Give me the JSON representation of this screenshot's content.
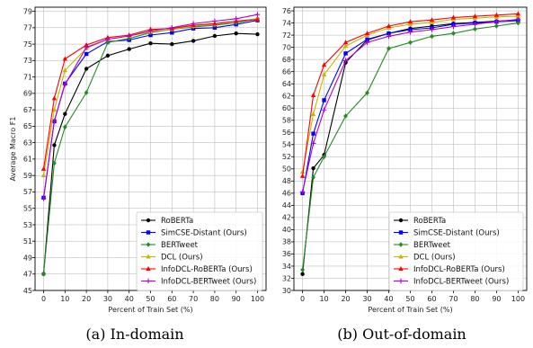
{
  "chart_data": [
    {
      "type": "line",
      "caption": "(a) In-domain",
      "xlabel": "Percent of Train Set (%)",
      "ylabel": "Average Macro F1",
      "x": [
        0,
        5,
        10,
        20,
        30,
        40,
        50,
        60,
        70,
        80,
        90,
        100
      ],
      "xticks": [
        0,
        10,
        20,
        30,
        40,
        50,
        60,
        70,
        80,
        90,
        100
      ],
      "xlim": [
        -4,
        104
      ],
      "ylim": [
        45,
        79.5
      ],
      "yticks": [
        45,
        47,
        49,
        51,
        53,
        55,
        57,
        59,
        61,
        63,
        65,
        67,
        69,
        71,
        73,
        75,
        77,
        79
      ],
      "grid": true,
      "legend_position": "bottom-right",
      "series": [
        {
          "name": "RoBERTa",
          "color": "#000000",
          "marker": "circle",
          "values": [
            47.0,
            62.7,
            66.5,
            72.0,
            73.6,
            74.4,
            75.1,
            75.0,
            75.4,
            76.0,
            76.3,
            76.2
          ]
        },
        {
          "name": "SimCSE-Distant (Ours)",
          "color": "#0000ff",
          "marker": "square",
          "values": [
            56.3,
            65.6,
            70.2,
            73.8,
            75.3,
            75.5,
            76.1,
            76.4,
            76.9,
            77.0,
            77.4,
            77.9
          ]
        },
        {
          "name": "BERTweet",
          "color": "#228b22",
          "marker": "diamond",
          "values": [
            47.0,
            60.5,
            64.9,
            69.1,
            75.2,
            75.7,
            76.4,
            76.8,
            77.1,
            77.3,
            77.6,
            78.1
          ]
        },
        {
          "name": "DCL (Ours)",
          "color": "#c8b400",
          "marker": "triangle",
          "values": [
            59.0,
            67.0,
            71.8,
            74.5,
            75.6,
            76.0,
            76.5,
            76.8,
            77.2,
            77.4,
            77.8,
            78.1
          ]
        },
        {
          "name": "InfoDCL-RoBERTa (Ours)",
          "color": "#ff0000",
          "marker": "triangle",
          "values": [
            59.8,
            68.4,
            73.2,
            74.9,
            75.8,
            76.1,
            76.8,
            76.9,
            77.3,
            77.5,
            77.8,
            78.0
          ]
        },
        {
          "name": "InfoDCL-BERTweet (Ours)",
          "color": "#b000d0",
          "marker": "plus",
          "values": [
            56.2,
            65.6,
            70.1,
            74.6,
            75.6,
            76.0,
            76.6,
            77.0,
            77.5,
            77.8,
            78.1,
            78.6
          ]
        }
      ]
    },
    {
      "type": "line",
      "caption": "(b) Out-of-domain",
      "xlabel": "Percent of Train Set (%)",
      "ylabel": "",
      "x": [
        0,
        5,
        10,
        20,
        30,
        40,
        50,
        60,
        70,
        80,
        90,
        100
      ],
      "xticks": [
        0,
        10,
        20,
        30,
        40,
        50,
        60,
        70,
        80,
        90,
        100
      ],
      "xlim": [
        -4,
        104
      ],
      "ylim": [
        30,
        76.6
      ],
      "yticks": [
        30,
        32,
        34,
        36,
        38,
        40,
        42,
        44,
        46,
        48,
        50,
        52,
        54,
        56,
        58,
        60,
        62,
        64,
        66,
        68,
        70,
        72,
        74,
        76
      ],
      "grid": true,
      "legend_position": "bottom-right",
      "series": [
        {
          "name": "RoBERTa",
          "color": "#000000",
          "marker": "circle",
          "values": [
            32.7,
            50.1,
            52.3,
            67.5,
            71.2,
            72.3,
            73.1,
            73.5,
            73.9,
            74.1,
            74.3,
            74.5
          ]
        },
        {
          "name": "SimCSE-Distant (Ours)",
          "color": "#0000ff",
          "marker": "square",
          "values": [
            46.0,
            55.8,
            61.3,
            69.0,
            71.3,
            72.3,
            72.9,
            73.2,
            73.8,
            74.0,
            74.2,
            74.4
          ]
        },
        {
          "name": "BERTweet",
          "color": "#228b22",
          "marker": "diamond",
          "values": [
            33.4,
            48.6,
            52.0,
            58.7,
            62.5,
            69.8,
            70.8,
            71.8,
            72.3,
            73.0,
            73.5,
            74.0
          ]
        },
        {
          "name": "DCL (Ours)",
          "color": "#c8b400",
          "marker": "triangle",
          "values": [
            49.5,
            59.0,
            65.5,
            70.2,
            72.0,
            73.2,
            73.8,
            74.1,
            74.6,
            74.8,
            75.0,
            75.1
          ]
        },
        {
          "name": "InfoDCL-RoBERTa (Ours)",
          "color": "#ff0000",
          "marker": "triangle",
          "values": [
            48.8,
            62.1,
            67.1,
            70.8,
            72.3,
            73.5,
            74.2,
            74.5,
            74.9,
            75.1,
            75.3,
            75.5
          ]
        },
        {
          "name": "InfoDCL-BERTweet (Ours)",
          "color": "#b000d0",
          "marker": "plus",
          "values": [
            46.2,
            54.2,
            59.7,
            67.8,
            70.8,
            71.8,
            72.5,
            72.9,
            73.4,
            73.8,
            74.2,
            74.6
          ]
        }
      ]
    }
  ]
}
